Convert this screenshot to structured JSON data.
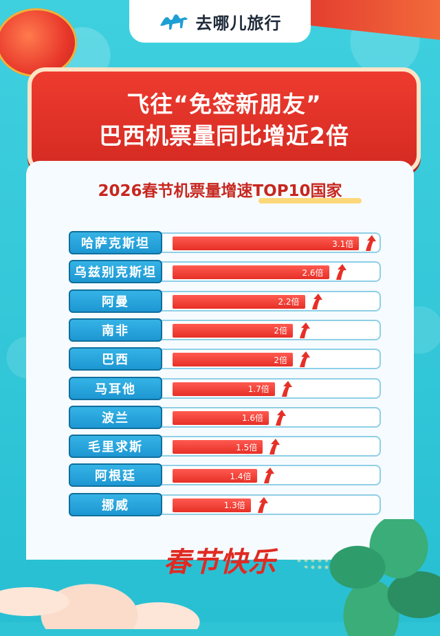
{
  "brand": {
    "name": "去哪儿旅行",
    "icon": "camel-icon"
  },
  "headline": {
    "line1": "飞往“免签新朋友”",
    "line2": "巴西机票量同比增近2倍"
  },
  "festive": "春节快乐",
  "chart_data": {
    "type": "bar",
    "orientation": "horizontal",
    "title": "2026春节机票量增速TOP10国家",
    "unit": "倍",
    "categories": [
      "哈萨克斯坦",
      "乌兹别克斯坦",
      "阿曼",
      "南非",
      "巴西",
      "马耳他",
      "波兰",
      "毛里求斯",
      "阿根廷",
      "挪威"
    ],
    "values": [
      3.1,
      2.6,
      2.2,
      2,
      2,
      1.7,
      1.6,
      1.5,
      1.4,
      1.3
    ],
    "value_labels": [
      "3.1倍",
      "2.6倍",
      "2.2倍",
      "2倍",
      "2倍",
      "1.7倍",
      "1.6倍",
      "1.5倍",
      "1.4倍",
      "1.3倍"
    ],
    "bar_color": "#e63027",
    "label_color": "#1d97d2"
  },
  "colors": {
    "background": "#2ec4d6",
    "accent": "#e23a2e",
    "highlight": "#ffd05a"
  }
}
